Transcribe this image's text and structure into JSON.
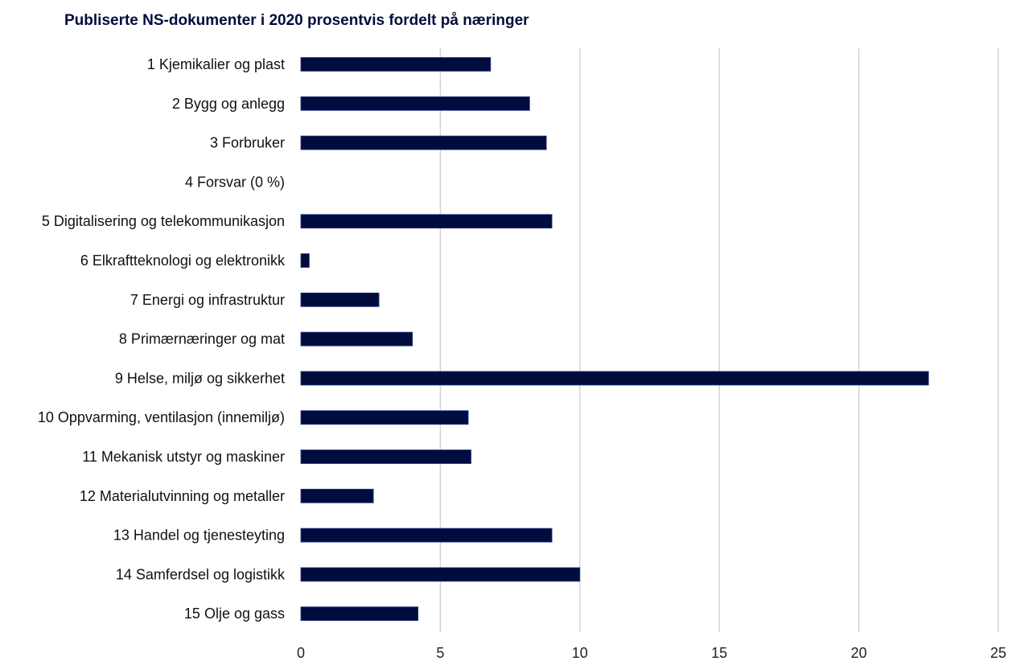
{
  "chart_data": {
    "type": "bar",
    "orientation": "horizontal",
    "title": "Publiserte NS-dokumenter i 2020 prosentvis fordelt på næringer",
    "xlabel": "",
    "ylabel": "",
    "xlim": [
      0,
      25
    ],
    "xticks": [
      0,
      5,
      10,
      15,
      20,
      25
    ],
    "xtick_labels": [
      "0",
      "5",
      "10",
      "15",
      "20",
      "25"
    ],
    "grid": "vertical",
    "legend": "none",
    "bar_color": "#000c3d",
    "categories": [
      "1 Kjemikalier og plast",
      "2 Bygg og anlegg",
      "3 Forbruker",
      "4 Forsvar (0 %)",
      "5 Digitalisering og telekommunikasjon",
      "6 Elkraftteknologi og elektronikk",
      "7 Energi og infrastruktur",
      "8 Primærnæringer og mat",
      "9 Helse, miljø og sikkerhet",
      "10 Oppvarming, ventilasjon (innemiljø)",
      "11 Mekanisk utstyr og maskiner",
      "12 Materialutvinning og metaller",
      "13 Handel og tjenesteyting",
      "14 Samferdsel og logistikk",
      "15 Olje og gass"
    ],
    "values": [
      6.8,
      8.2,
      8.8,
      0,
      9.0,
      0.3,
      2.8,
      4.0,
      22.5,
      6.0,
      6.1,
      2.6,
      9.0,
      10.0,
      4.2
    ]
  }
}
